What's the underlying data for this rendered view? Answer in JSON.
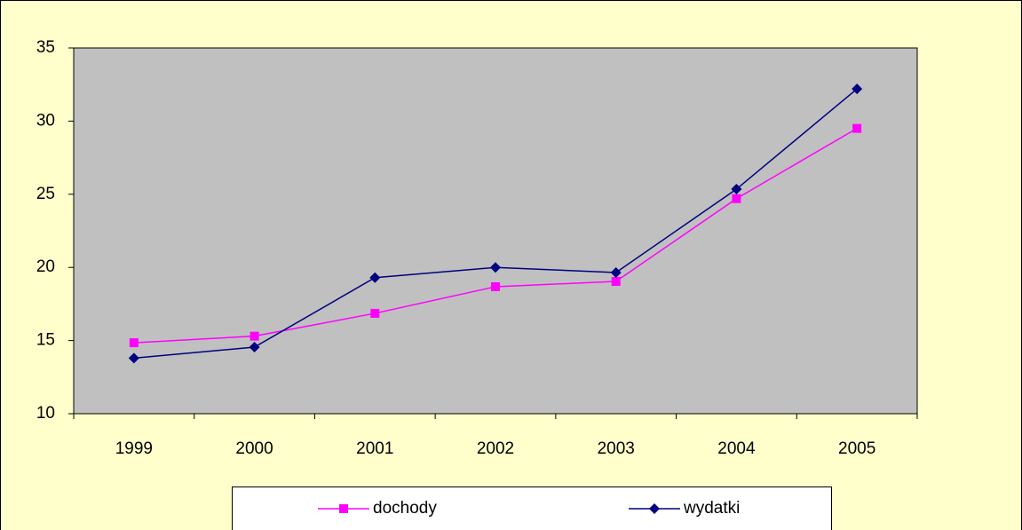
{
  "chart_data": {
    "type": "line",
    "categories": [
      "1999",
      "2000",
      "2001",
      "2002",
      "2003",
      "2004",
      "2005"
    ],
    "series": [
      {
        "name": "dochody",
        "color": "#ff00ff",
        "marker": "square",
        "values": [
          14.85,
          15.3,
          16.86,
          18.68,
          19.04,
          24.7,
          29.5
        ]
      },
      {
        "name": "wydatki",
        "color": "#000080",
        "marker": "diamond",
        "values": [
          13.8,
          14.55,
          19.3,
          20.0,
          19.65,
          25.35,
          32.2
        ]
      }
    ],
    "ylim": [
      10,
      35
    ],
    "yticks": [
      10,
      15,
      20,
      25,
      30,
      35
    ],
    "grid": false,
    "legend": "bottom"
  }
}
